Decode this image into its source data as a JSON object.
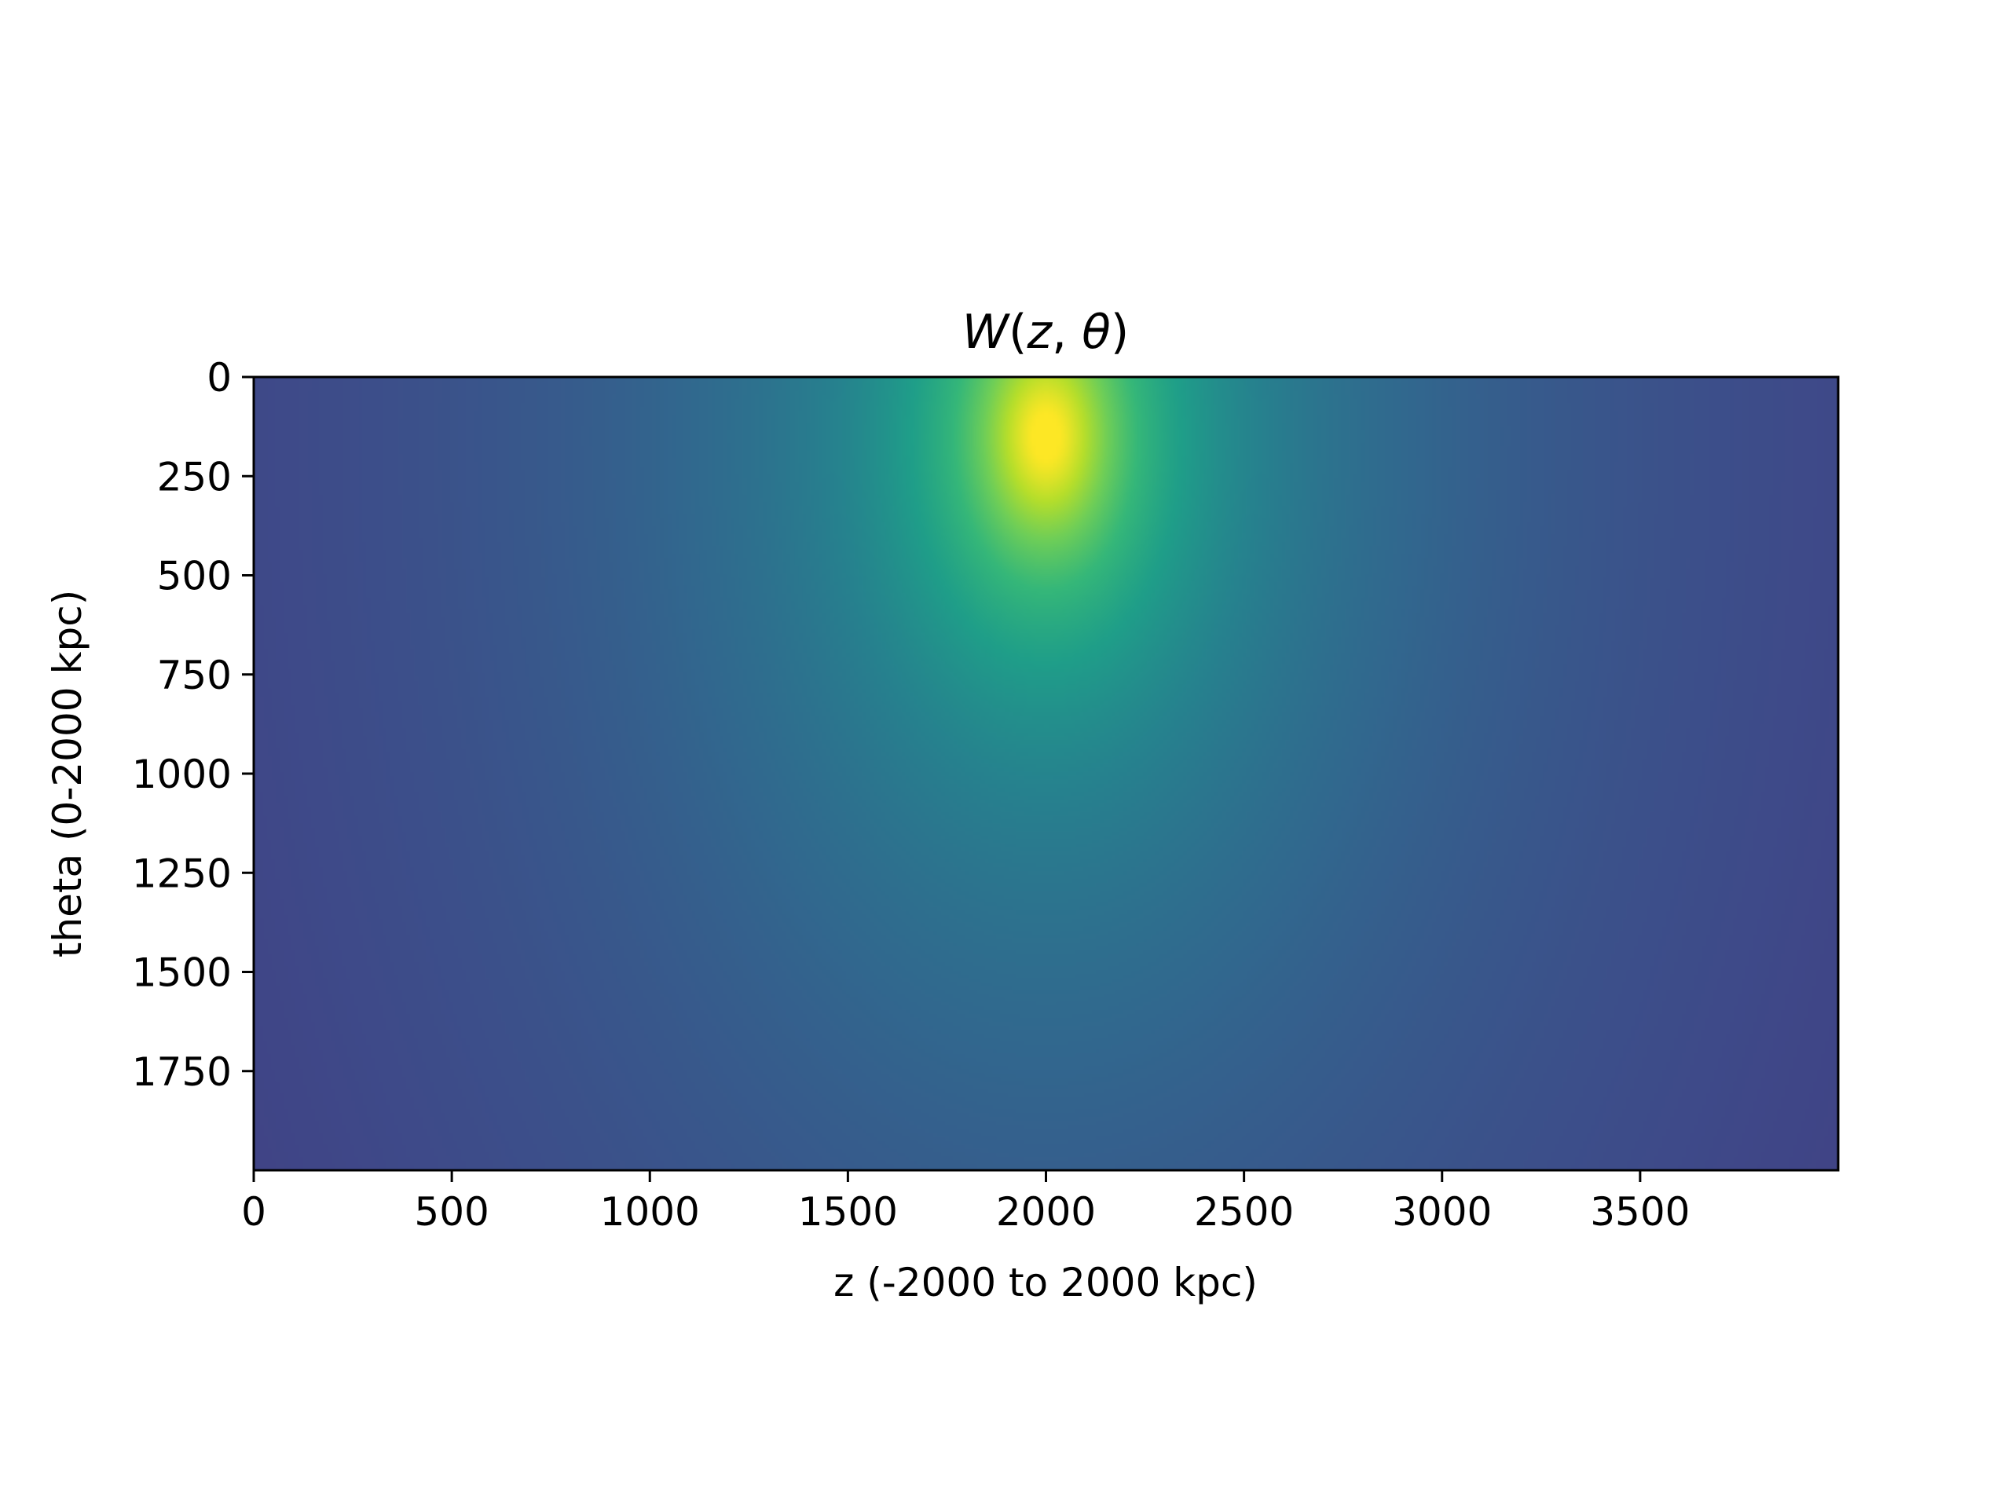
{
  "chart_data": {
    "type": "heatmap",
    "title": "W(z, θ)",
    "xlabel": "z (-2000 to 2000 kpc)",
    "ylabel": "theta (0-2000 kpc)",
    "xlim": [
      0,
      4000
    ],
    "ylim": [
      2000,
      0
    ],
    "x_ticks": [
      0,
      500,
      1000,
      1500,
      2000,
      2500,
      3000,
      3500
    ],
    "y_ticks": [
      0,
      250,
      500,
      750,
      1000,
      1250,
      1500,
      1750
    ],
    "colormap": "viridis",
    "peak": {
      "x": 2000,
      "y": 150
    },
    "grid": false,
    "legend": "none"
  }
}
